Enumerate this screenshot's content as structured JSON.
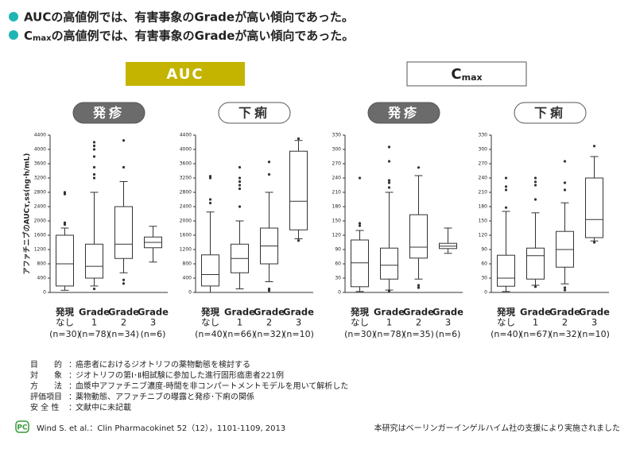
{
  "bullets": [
    {
      "main": "AUCの高値例では、有害事象のGradeが高い傾向であった。"
    },
    {
      "prefix": "C",
      "sub": "max",
      "main": "の高値例では、有害事象のGradeが高い傾向であった。"
    }
  ],
  "panels": [
    {
      "label": "AUC"
    },
    {
      "label": "C",
      "sub": "max"
    }
  ],
  "chart_data": [
    {
      "type": "box",
      "title": "発疹",
      "title_style": "filled",
      "ylabel": "アファチニブのAUCτ,ss(ng·h/mL)",
      "ylim": [
        0,
        4400
      ],
      "yticks": [
        0,
        400,
        800,
        1200,
        1600,
        2000,
        2400,
        2800,
        3200,
        3600,
        4000,
        4400
      ],
      "categories": [
        [
          "発現",
          "なし"
        ],
        [
          "Grade",
          "1"
        ],
        [
          "Grade",
          "2"
        ],
        [
          "Grade",
          "3"
        ]
      ],
      "n_labels": [
        "(n=30)",
        "(n=78)",
        "(n=34)",
        "(n=6)"
      ],
      "boxes": [
        {
          "whislo": 60,
          "q1": 180,
          "med": 800,
          "q3": 1600,
          "whishi": 1800,
          "fliers": [
            1900,
            1950,
            2750,
            2800
          ]
        },
        {
          "whislo": 180,
          "q1": 400,
          "med": 730,
          "q3": 1350,
          "whishi": 2800,
          "fliers": [
            100,
            3200,
            3300,
            3500,
            3800,
            4000,
            4100,
            4200
          ]
        },
        {
          "whislo": 550,
          "q1": 950,
          "med": 1350,
          "q3": 2400,
          "whishi": 3100,
          "fliers": [
            250,
            350,
            3500,
            4250
          ]
        },
        {
          "whislo": 850,
          "q1": 1250,
          "med": 1400,
          "q3": 1550,
          "whishi": 1850,
          "fliers": []
        }
      ]
    },
    {
      "type": "box",
      "title": "下痢",
      "title_style": "outline",
      "ylim": [
        0,
        4400
      ],
      "yticks": [
        0,
        400,
        800,
        1200,
        1600,
        2000,
        2400,
        2800,
        3200,
        3600,
        4000,
        4400
      ],
      "categories": [
        [
          "発現",
          "なし"
        ],
        [
          "Grade",
          "1"
        ],
        [
          "Grade",
          "2"
        ],
        [
          "Grade",
          "3"
        ]
      ],
      "n_labels": [
        "(n=40)",
        "(n=66)",
        "(n=32)",
        "(n=10)"
      ],
      "boxes": [
        {
          "whislo": 0,
          "q1": 180,
          "med": 500,
          "q3": 1050,
          "whishi": 2250,
          "fliers": [
            2500,
            2600,
            3200,
            3250
          ]
        },
        {
          "whislo": 100,
          "q1": 550,
          "med": 950,
          "q3": 1350,
          "whishi": 2000,
          "fliers": [
            2400,
            2900,
            3000,
            3100,
            3200,
            3500
          ]
        },
        {
          "whislo": 300,
          "q1": 800,
          "med": 1300,
          "q3": 1800,
          "whishi": 2800,
          "fliers": [
            50,
            100,
            3300,
            3650
          ]
        },
        {
          "whislo": 1500,
          "q1": 1750,
          "med": 2550,
          "q3": 3950,
          "whishi": 4250,
          "fliers": [
            1450,
            4300
          ]
        }
      ]
    },
    {
      "type": "box",
      "title": "発疹",
      "title_style": "filled",
      "ylim": [
        0,
        330
      ],
      "yticks": [
        0,
        30,
        60,
        90,
        120,
        150,
        180,
        210,
        240,
        270,
        300,
        330
      ],
      "categories": [
        [
          "発現",
          "なし"
        ],
        [
          "Grade",
          "1"
        ],
        [
          "Grade",
          "2"
        ],
        [
          "Grade",
          "3"
        ]
      ],
      "n_labels": [
        "(n=30)",
        "(n=78)",
        "(n=35)",
        "(n=6)"
      ],
      "boxes": [
        {
          "whislo": 2,
          "q1": 12,
          "med": 62,
          "q3": 110,
          "whishi": 130,
          "fliers": [
            140,
            145,
            240
          ]
        },
        {
          "whislo": 5,
          "q1": 28,
          "med": 57,
          "q3": 93,
          "whishi": 210,
          "fliers": [
            3,
            220,
            230,
            235,
            275,
            305
          ]
        },
        {
          "whislo": 28,
          "q1": 72,
          "med": 95,
          "q3": 163,
          "whishi": 245,
          "fliers": [
            10,
            15,
            262
          ]
        },
        {
          "whislo": 82,
          "q1": 92,
          "med": 97,
          "q3": 103,
          "whishi": 135,
          "fliers": []
        }
      ]
    },
    {
      "type": "box",
      "title": "下痢",
      "title_style": "outline",
      "ylim": [
        0,
        330
      ],
      "yticks": [
        0,
        30,
        60,
        90,
        120,
        150,
        180,
        210,
        240,
        270,
        300,
        330
      ],
      "categories": [
        [
          "発現",
          "なし"
        ],
        [
          "Grade",
          "1"
        ],
        [
          "Grade",
          "2"
        ],
        [
          "Grade",
          "3"
        ]
      ],
      "n_labels": [
        "(n=40)",
        "(n=67)",
        "(n=32)",
        "(n=10)"
      ],
      "boxes": [
        {
          "whislo": 2,
          "q1": 13,
          "med": 30,
          "q3": 78,
          "whishi": 170,
          "fliers": [
            178,
            215,
            222,
            240
          ]
        },
        {
          "whislo": 15,
          "q1": 28,
          "med": 77,
          "q3": 93,
          "whishi": 167,
          "fliers": [
            12,
            195,
            225,
            232,
            240
          ]
        },
        {
          "whislo": 18,
          "q1": 53,
          "med": 90,
          "q3": 128,
          "whishi": 188,
          "fliers": [
            5,
            10,
            215,
            230,
            275
          ]
        },
        {
          "whislo": 108,
          "q1": 115,
          "med": 153,
          "q3": 240,
          "whishi": 285,
          "fliers": [
            105,
            307
          ]
        }
      ]
    }
  ],
  "notes": [
    [
      "目　　的",
      "癌患者におけるジオトリフの薬物動態を検討する"
    ],
    [
      "対　　象",
      "ジオトリフの第Ⅰ･Ⅱ相試験に参加した進行固形癌患者221例"
    ],
    [
      "方　　法",
      "血漿中アファチニブ濃度-時間を非コンパートメントモデルを用いて解析した"
    ],
    [
      "評価項目",
      "薬物動態、アファチニブの曝露と発疹･下痢の関係"
    ],
    [
      "安 全 性",
      "文献中に未記載"
    ]
  ],
  "logo": "PC",
  "citation": "Wind S. et al.：Clin Pharmacokinet 52（12），1101-1109, 2013",
  "support": "本研究はベーリンガーインゲルハイム社の支援により実施されました"
}
